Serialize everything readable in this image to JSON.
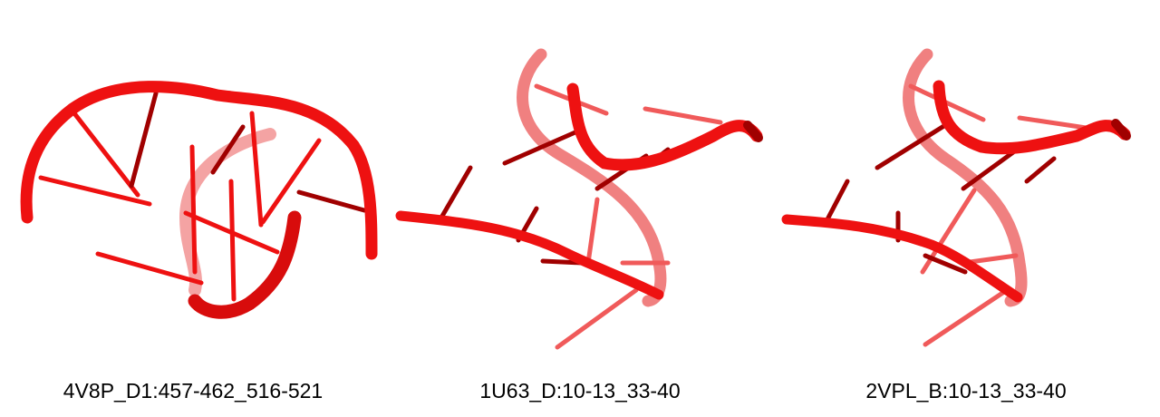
{
  "panels": [
    {
      "label": "4V8P_D1:457-462_516-521"
    },
    {
      "label": "1U63_D:10-13_33-40"
    },
    {
      "label": "2VPL_B:10-13_33-40"
    }
  ],
  "colors": {
    "backbone": "#ee1111",
    "backbone_faded": "#f07a7a",
    "base_dark": "#a00000"
  }
}
